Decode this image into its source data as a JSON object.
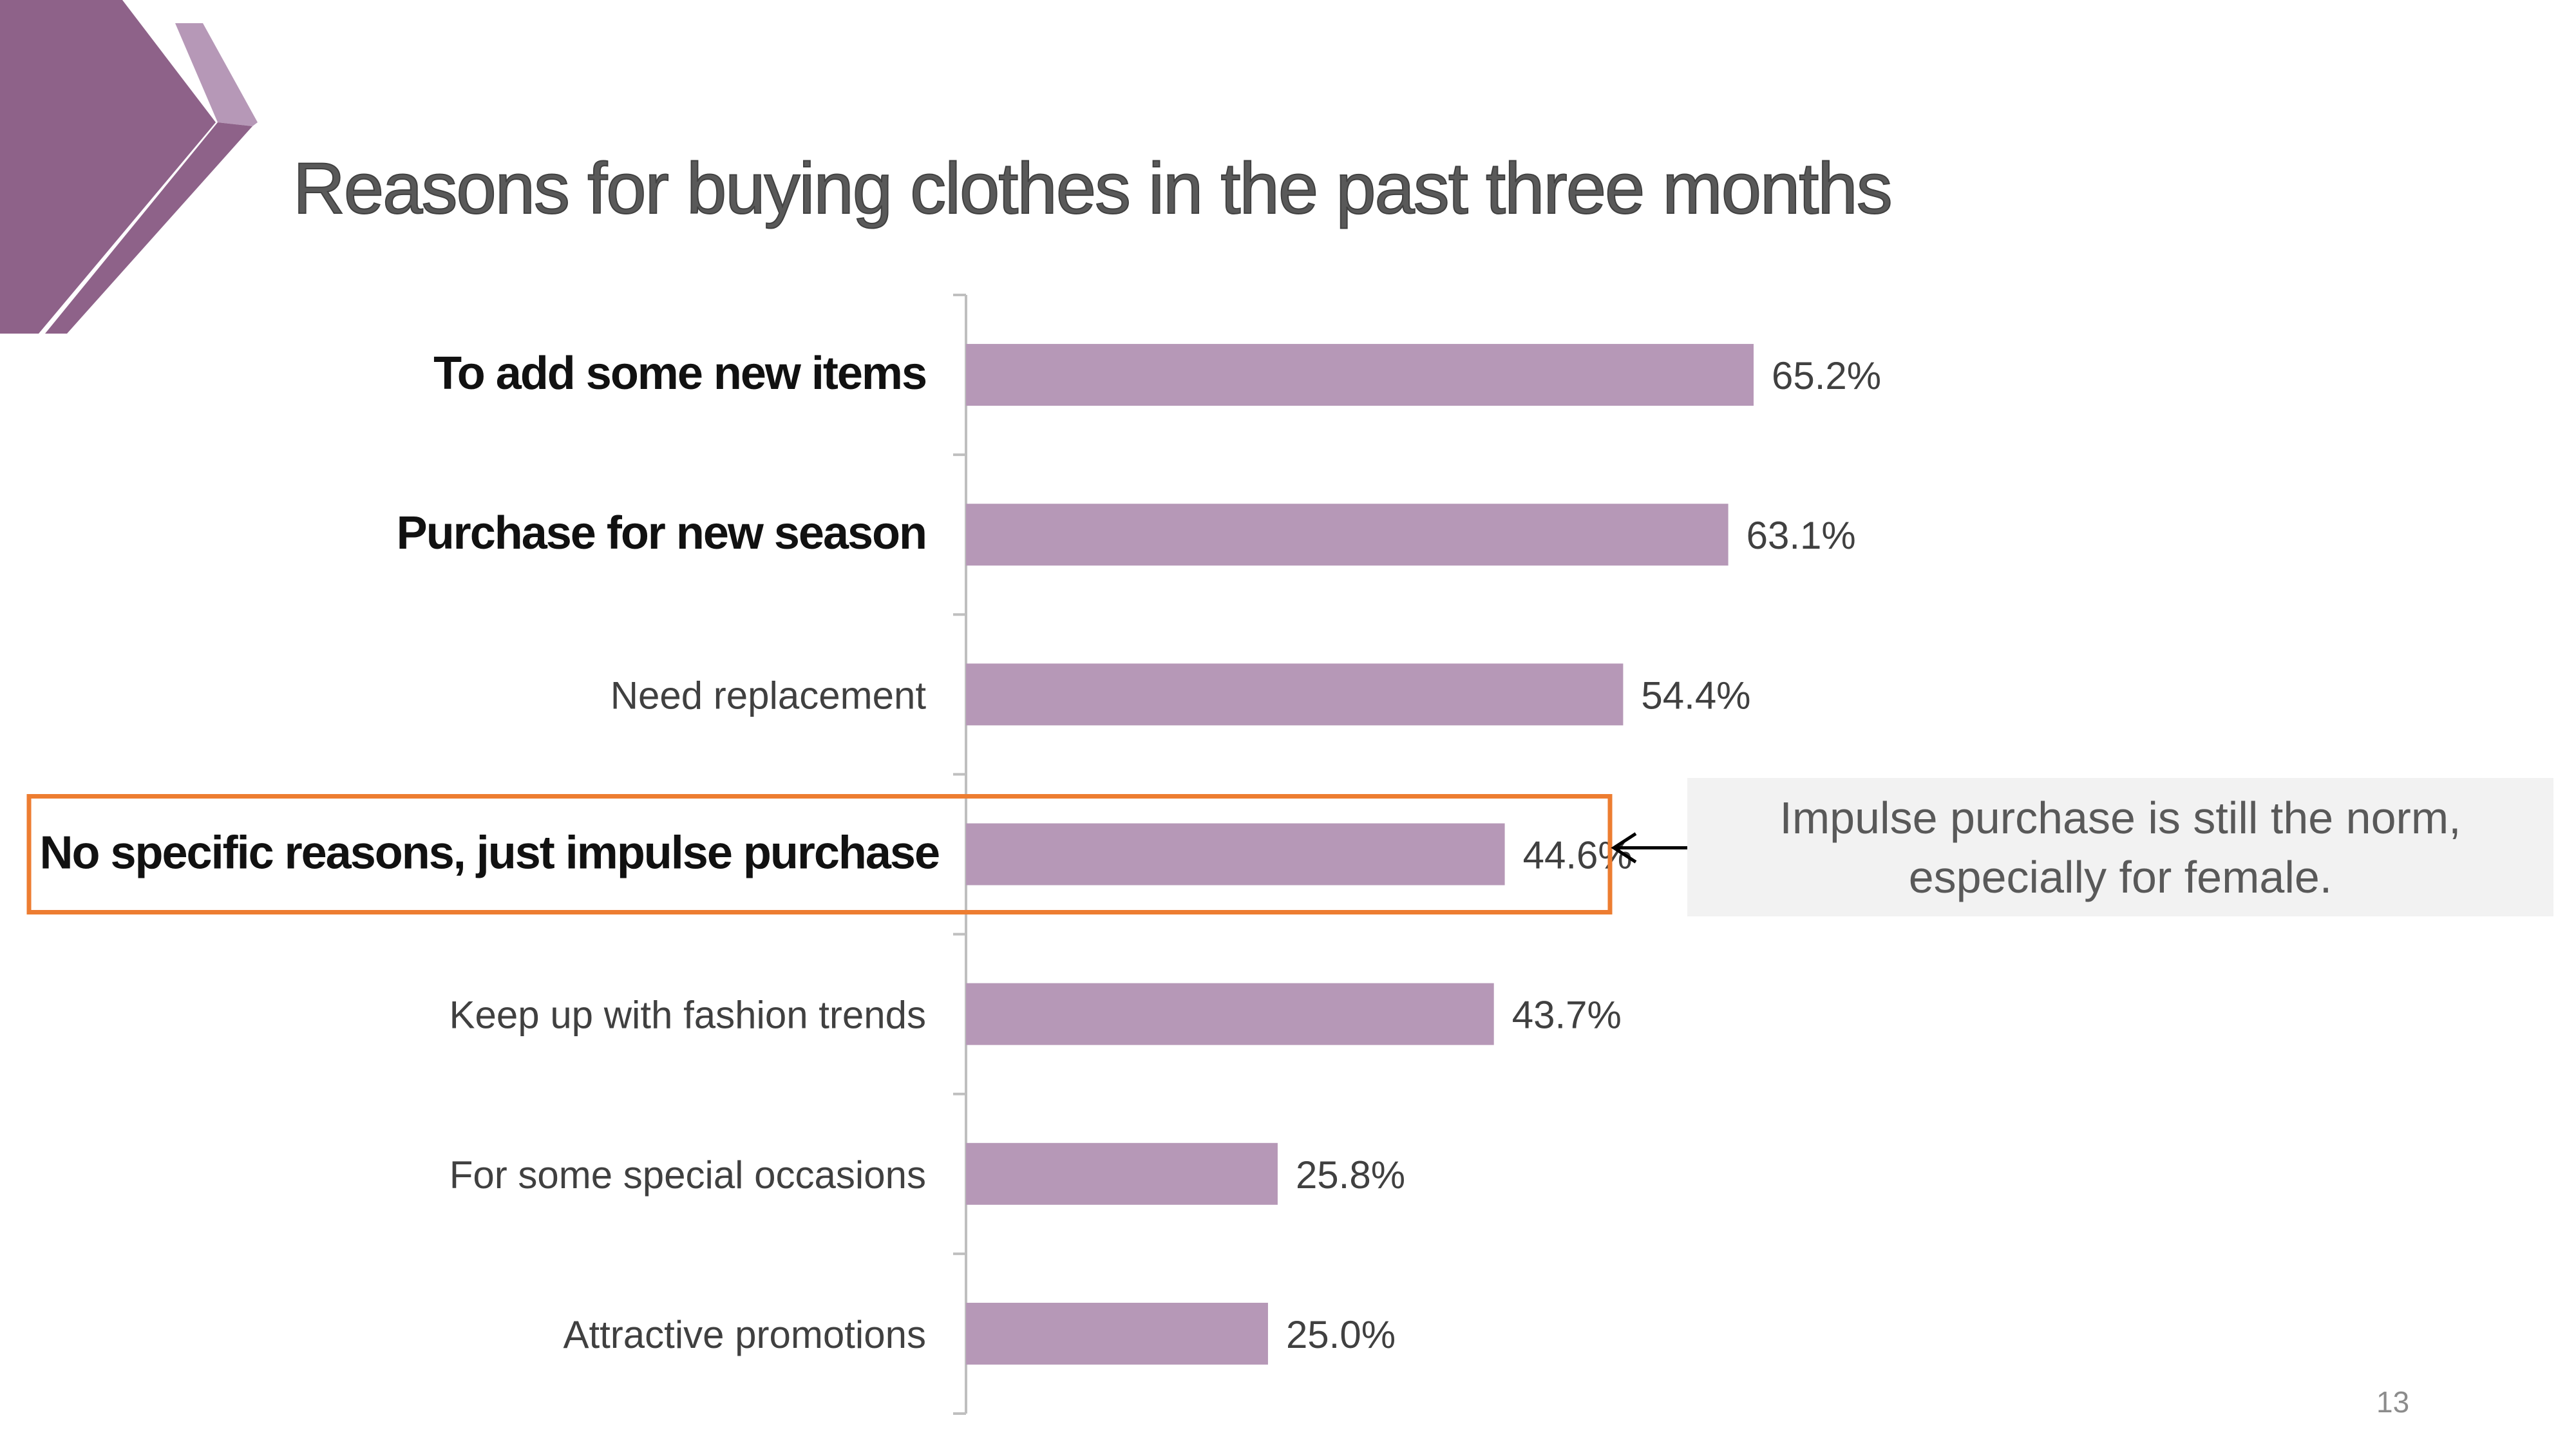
{
  "slide": {
    "title": "Reasons for buying clothes in the past three months",
    "page_number": "13",
    "callout": "Impulse purchase is still the norm, especially for female.",
    "colors": {
      "bar": "#b698b7",
      "deco_dark": "#8e6289",
      "deco_light": "#b698b7",
      "highlight_box": "#ed7d31",
      "label_bold": "#111111",
      "label_normal": "#404040",
      "value_label": "#404040"
    }
  },
  "chart_data": {
    "type": "bar",
    "orientation": "horizontal",
    "title": "Reasons for buying clothes in the past three months",
    "categories": [
      "To add some new items",
      "Purchase for new season",
      "Need replacement",
      "No specific reasons, just impulse purchase",
      "Keep up with fashion trends",
      "For some special occasions",
      "Attractive promotions"
    ],
    "values": [
      65.2,
      63.1,
      54.4,
      44.6,
      43.7,
      25.8,
      25.0
    ],
    "value_labels": [
      "65.2%",
      "63.1%",
      "54.4%",
      "44.6%",
      "43.7%",
      "25.8%",
      "25.0%"
    ],
    "bold_categories": [
      "To add some new items",
      "Purchase for new season",
      "No specific reasons, just impulse purchase"
    ],
    "highlighted_category": "No specific reasons, just impulse purchase",
    "unit": "%",
    "xlim": [
      0,
      100
    ],
    "grid": false,
    "legend": "none"
  }
}
